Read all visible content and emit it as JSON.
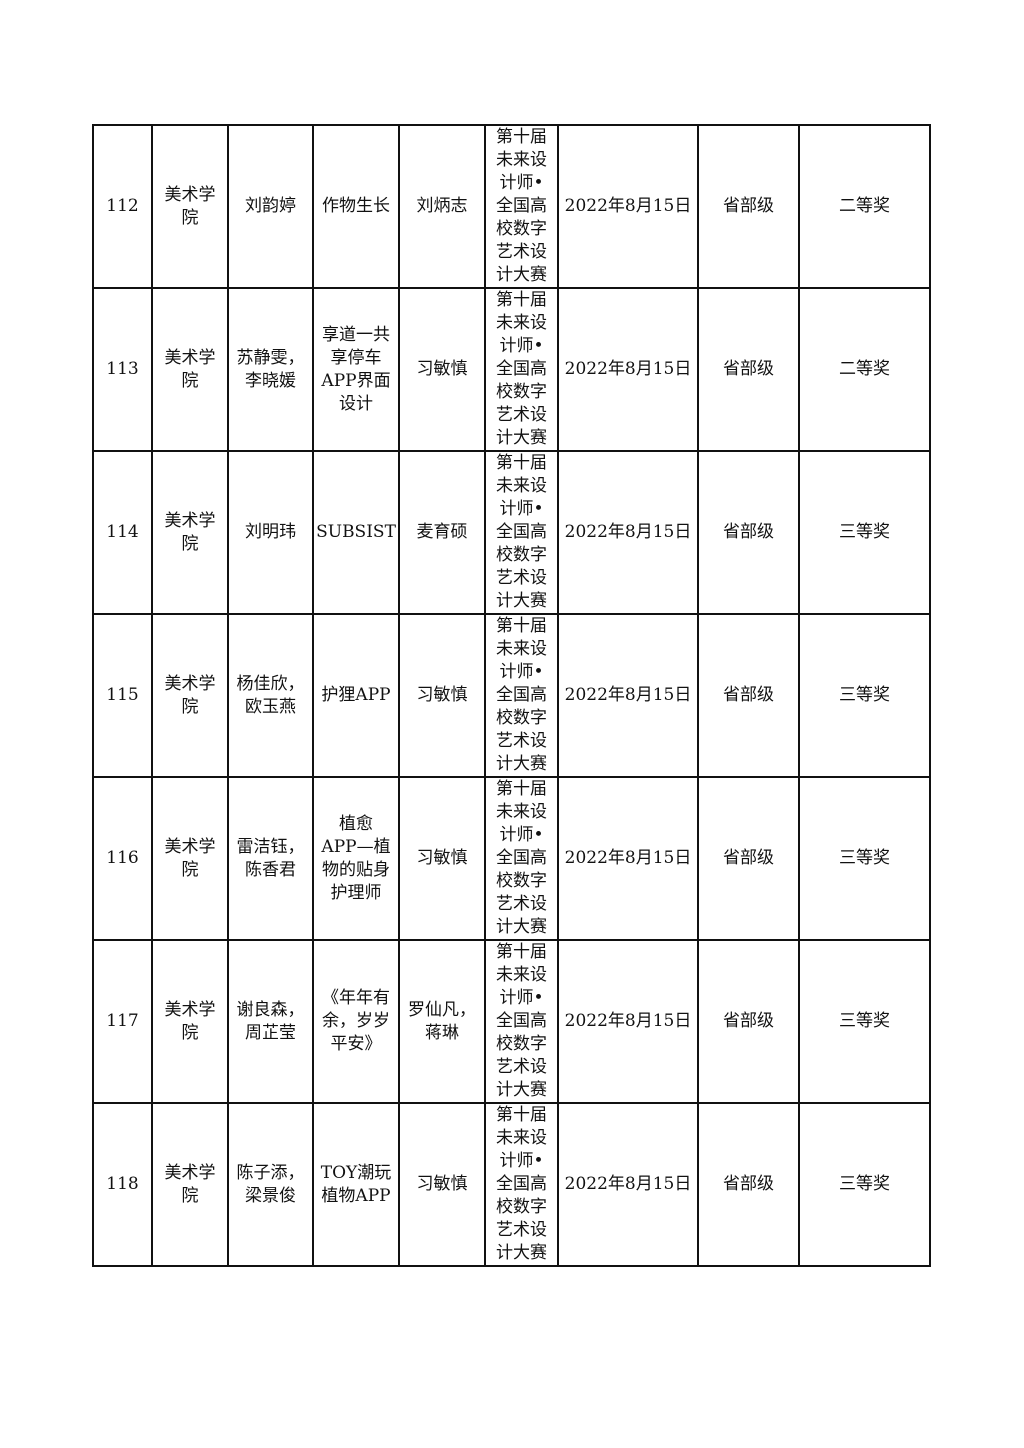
{
  "rows": [
    {
      "no": "112",
      "college": "美术学\n院",
      "students": "刘韵婷",
      "project": "作物生长",
      "advisor": "刘炳志",
      "competition": "第十届\n未来设\n计师•\n全国高\n校数字\n艺术设\n计大赛",
      "date": "2022年8月15日",
      "level": "省部级",
      "award": "二等奖"
    },
    {
      "no": "113",
      "college": "美术学\n院",
      "students": "苏静雯，\n李晓媛",
      "project": "享道一共\n享停车\nAPP界面\n设计",
      "advisor": "习敏慎",
      "competition": "第十届\n未来设\n计师•\n全国高\n校数字\n艺术设\n计大赛",
      "date": "2022年8月15日",
      "level": "省部级",
      "award": "二等奖"
    },
    {
      "no": "114",
      "college": "美术学\n院",
      "students": "刘明玮",
      "project": "SUBSIST",
      "advisor": "麦育硕",
      "competition": "第十届\n未来设\n计师•\n全国高\n校数字\n艺术设\n计大赛",
      "date": "2022年8月15日",
      "level": "省部级",
      "award": "三等奖"
    },
    {
      "no": "115",
      "college": "美术学\n院",
      "students": "杨佳欣，\n欧玉燕",
      "project": "护狸APP",
      "advisor": "习敏慎",
      "competition": "第十届\n未来设\n计师•\n全国高\n校数字\n艺术设\n计大赛",
      "date": "2022年8月15日",
      "level": "省部级",
      "award": "三等奖"
    },
    {
      "no": "116",
      "college": "美术学\n院",
      "students": "雷洁钰，\n陈香君",
      "project": "植愈\nAPP—植\n物的贴身\n护理师",
      "advisor": "习敏慎",
      "competition": "第十届\n未来设\n计师•\n全国高\n校数字\n艺术设\n计大赛",
      "date": "2022年8月15日",
      "level": "省部级",
      "award": "三等奖"
    },
    {
      "no": "117",
      "college": "美术学\n院",
      "students": "谢良森，\n周芷莹",
      "project": "《年年有\n余，岁岁\n平安》",
      "advisor": "罗仙凡，\n蒋琳",
      "competition": "第十届\n未来设\n计师•\n全国高\n校数字\n艺术设\n计大赛",
      "date": "2022年8月15日",
      "level": "省部级",
      "award": "三等奖"
    },
    {
      "no": "118",
      "college": "美术学\n院",
      "students": "陈子添，\n梁景俊",
      "project": "TOY潮玩\n植物APP",
      "advisor": "习敏慎",
      "competition": "第十届\n未来设\n计师•\n全国高\n校数字\n艺术设\n计大赛",
      "date": "2022年8月15日",
      "level": "省部级",
      "award": "三等奖"
    }
  ]
}
